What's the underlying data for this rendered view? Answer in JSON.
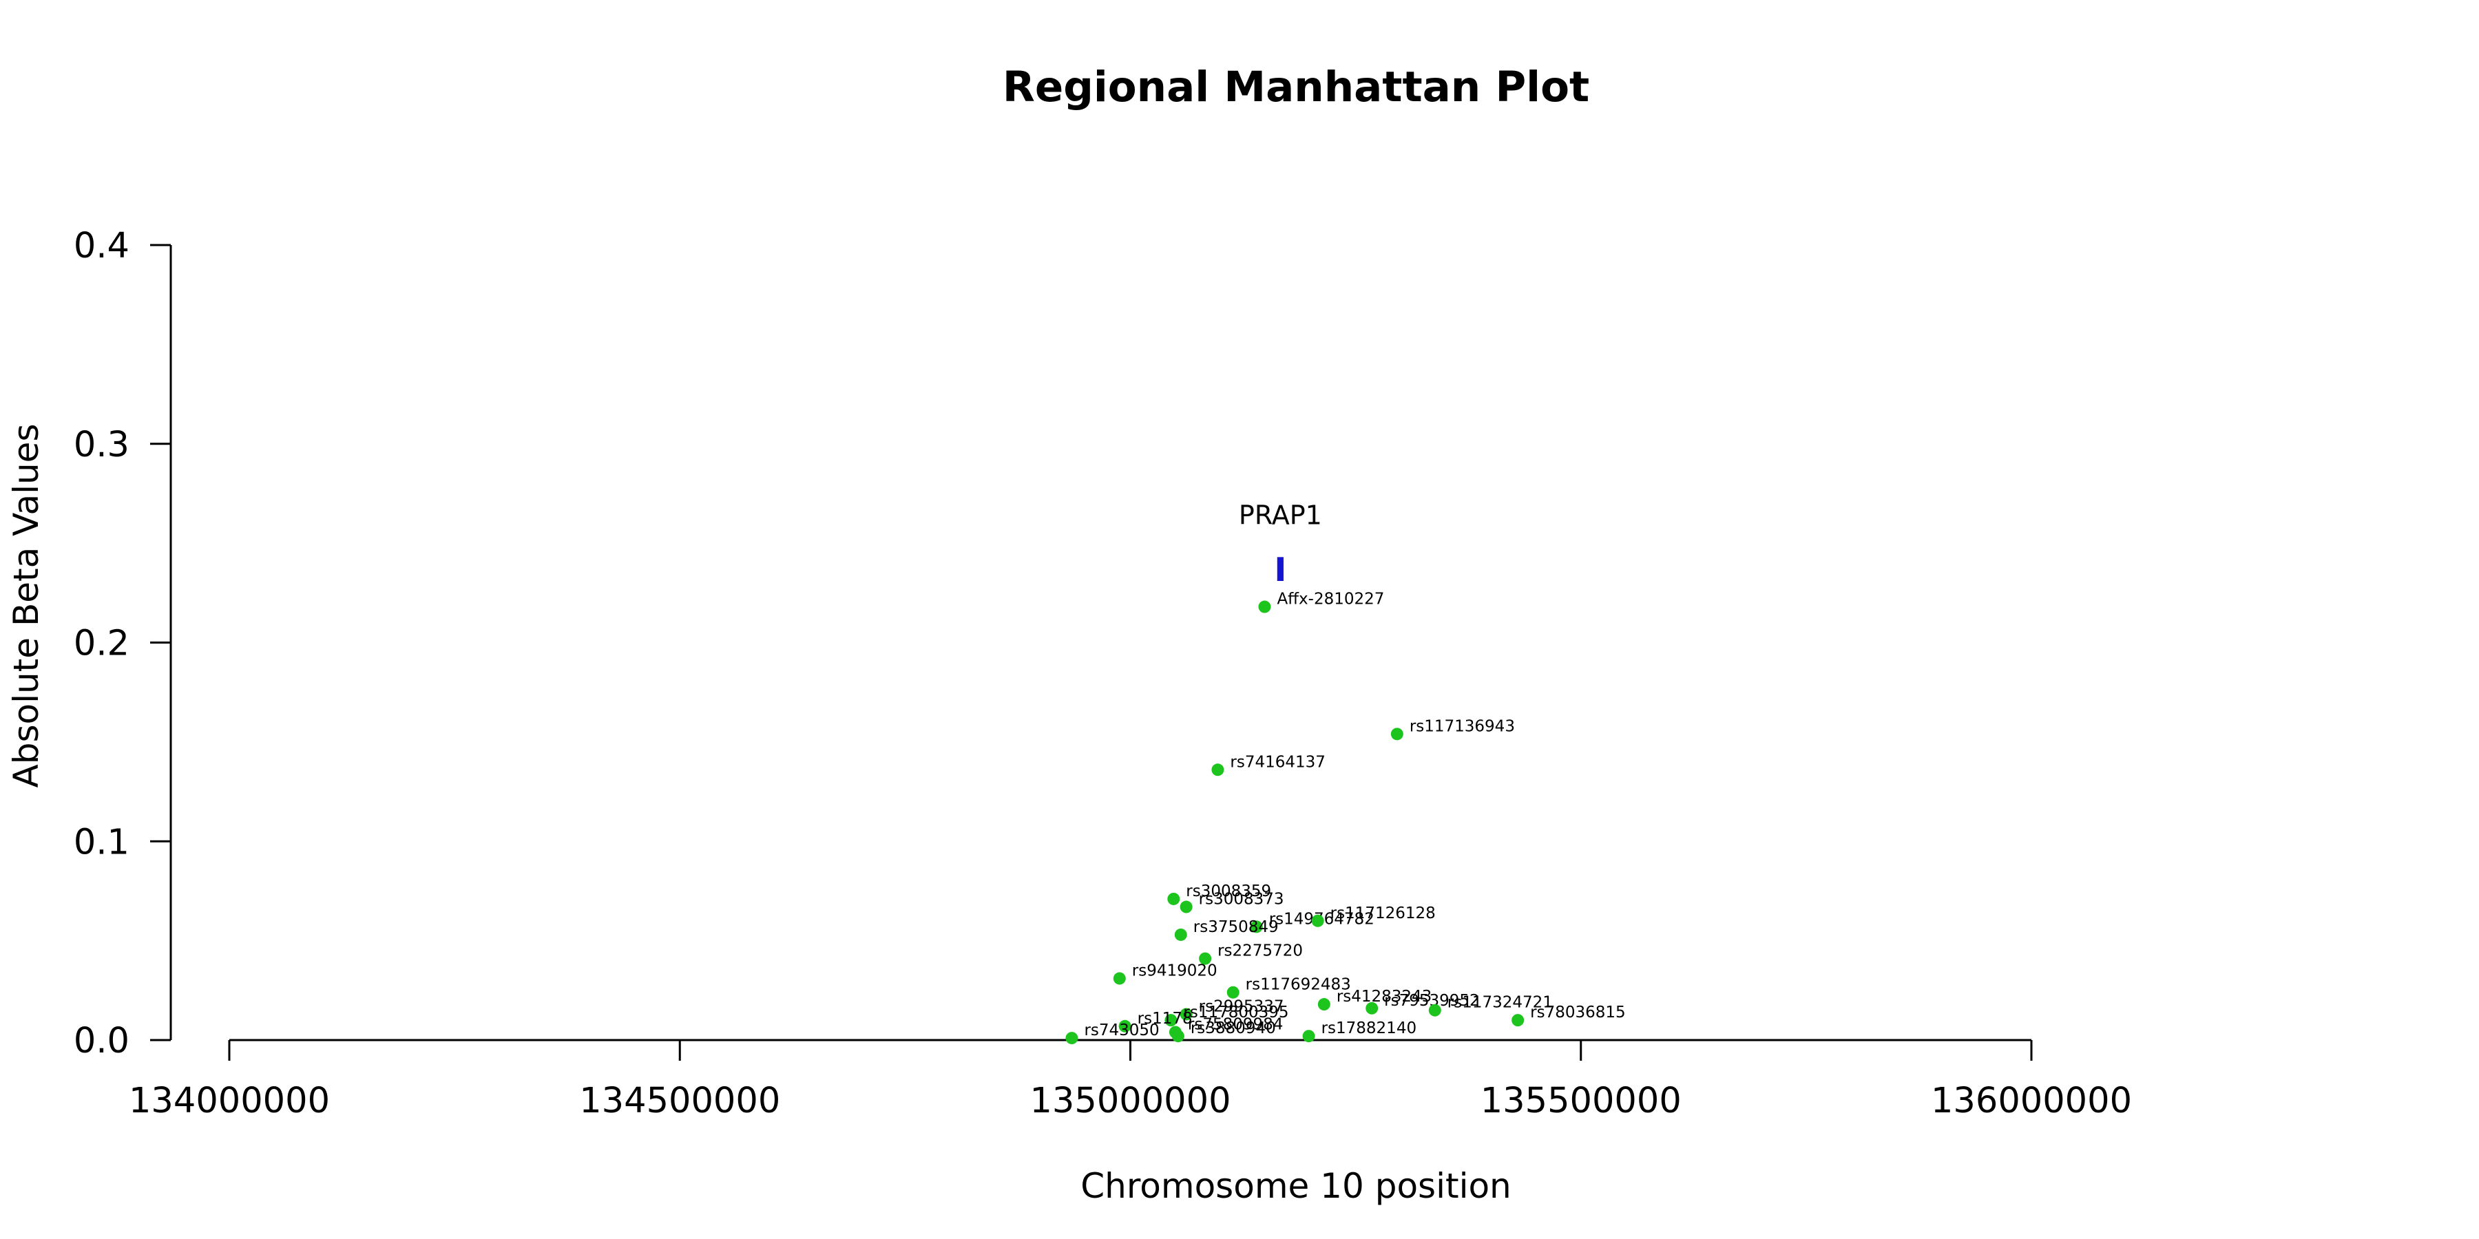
{
  "chart_data": {
    "type": "scatter",
    "title": "Regional Manhattan Plot",
    "xlabel": "Chromosome 10 position",
    "ylabel": "Absolute Beta Values",
    "xlim": [
      134000000,
      136000000
    ],
    "ylim": [
      0.0,
      0.4
    ],
    "x_ticks": [
      "134000000",
      "134500000",
      "135000000",
      "135500000",
      "136000000"
    ],
    "y_ticks": [
      "0.0",
      "0.1",
      "0.2",
      "0.3",
      "0.4"
    ],
    "grid": false,
    "legend": "none",
    "point_color": "#1ec41e",
    "gene_color": "#1414d2",
    "genes": [
      {
        "name": "PRAP1",
        "start": 135163000,
        "end": 135170000,
        "y_low": 0.231,
        "y_high": 0.243
      }
    ],
    "points": [
      {
        "label": "Affx-2810227",
        "x": 135149000,
        "y": 0.218
      },
      {
        "label": "rs117136943",
        "x": 135296000,
        "y": 0.154
      },
      {
        "label": "rs74164137",
        "x": 135097000,
        "y": 0.136
      },
      {
        "label": "rs3008359",
        "x": 135048000,
        "y": 0.071
      },
      {
        "label": "rs3008373",
        "x": 135062000,
        "y": 0.067
      },
      {
        "label": "rs149764782",
        "x": 135140000,
        "y": 0.057
      },
      {
        "label": "rs117126128",
        "x": 135208000,
        "y": 0.06
      },
      {
        "label": "rs3750849",
        "x": 135056000,
        "y": 0.053
      },
      {
        "label": "rs2275720",
        "x": 135083000,
        "y": 0.041
      },
      {
        "label": "rs9419020",
        "x": 134988000,
        "y": 0.031
      },
      {
        "label": "rs117692483",
        "x": 135114000,
        "y": 0.024
      },
      {
        "label": "rs41283243",
        "x": 135215000,
        "y": 0.018
      },
      {
        "label": "rs79539952",
        "x": 135268000,
        "y": 0.016
      },
      {
        "label": "rs117324721",
        "x": 135338000,
        "y": 0.015
      },
      {
        "label": "rs78036815",
        "x": 135430000,
        "y": 0.01
      },
      {
        "label": "rs2995337",
        "x": 135062000,
        "y": 0.013
      },
      {
        "label": "rs117800395",
        "x": 135045000,
        "y": 0.01
      },
      {
        "label": "rs1178",
        "x": 134994000,
        "y": 0.007
      },
      {
        "label": "rs75809984",
        "x": 135050000,
        "y": 0.004
      },
      {
        "label": "rs17882140",
        "x": 135198000,
        "y": 0.002
      },
      {
        "label": "rs3880940",
        "x": 135053000,
        "y": 0.002
      },
      {
        "label": "rs743050",
        "x": 134935000,
        "y": 0.001
      }
    ]
  }
}
